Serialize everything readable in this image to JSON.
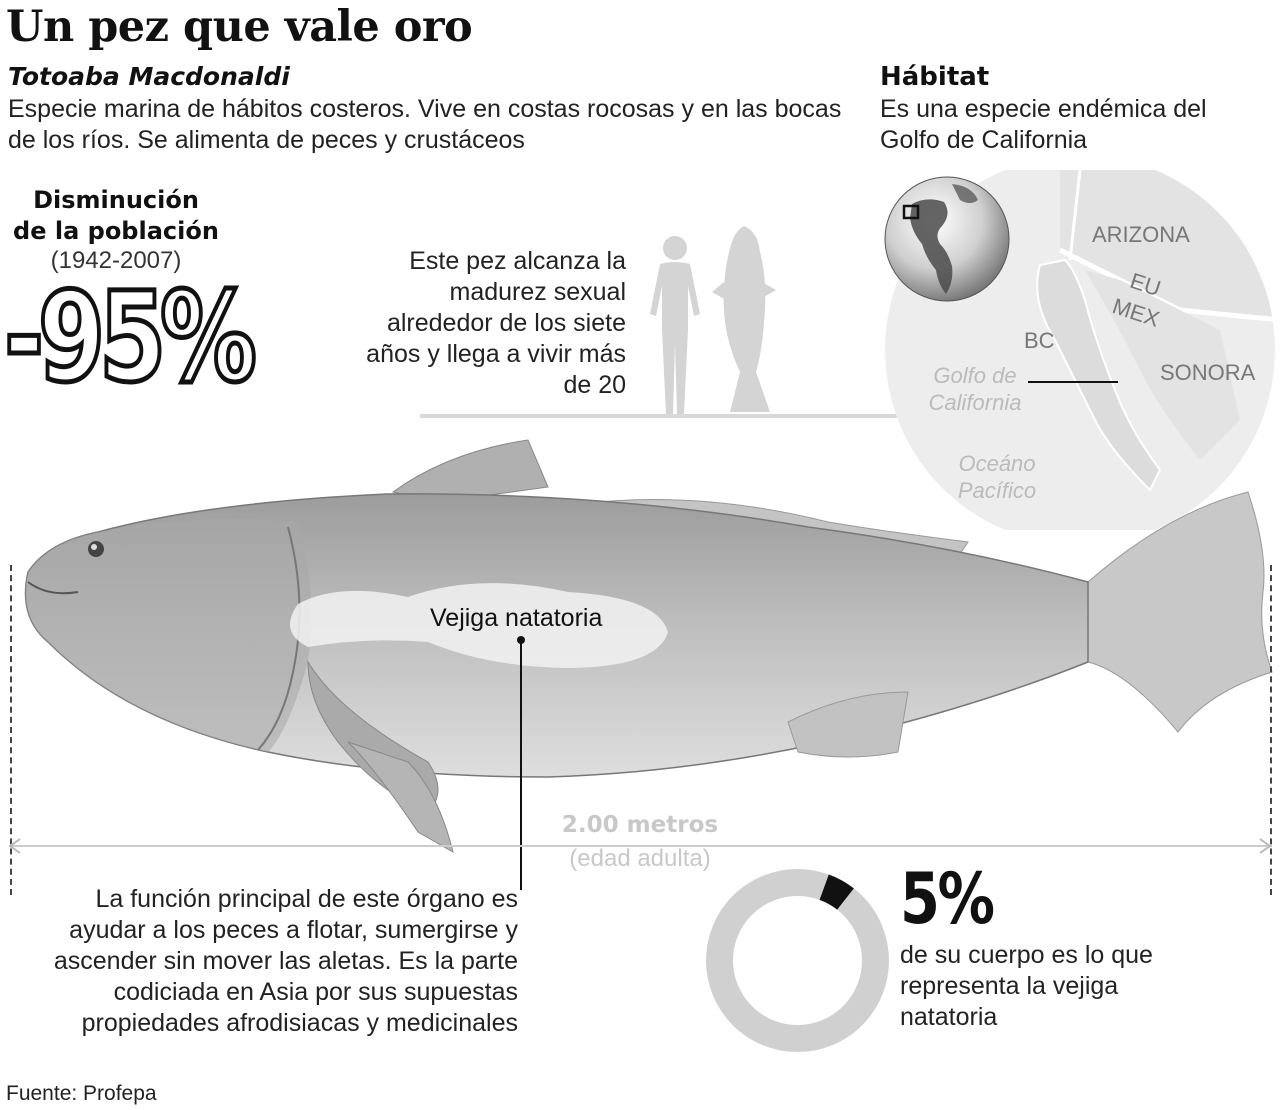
{
  "title": "Un pez que vale oro",
  "species": {
    "name": "Totoaba Macdonaldi",
    "description": "Especie marina de hábitos costeros. Vive en costas rocosas y en las bocas de los ríos. Se alimenta de peces y crustáceos"
  },
  "habitat": {
    "title": "Hábitat",
    "description": "Es una especie endémica del Golfo de California",
    "map_labels": {
      "arizona": "ARIZONA",
      "eu": "EU",
      "mex": "MEX",
      "bc": "BC",
      "sonora": "SONORA",
      "gulf_line1": "Golfo de",
      "gulf_line2": "California",
      "ocean_line1": "Oceáno",
      "ocean_line2": "Pacífico"
    }
  },
  "population": {
    "title_line1": "Disminución",
    "title_line2": "de la población",
    "years": "(1942-2007)",
    "value": "-95%"
  },
  "maturity": {
    "text": "Este pez alcanza la madurez sexual alrededor de los siete años y llega a vivir más de 20"
  },
  "fish": {
    "bladder_label": "Vejiga natatoria",
    "size_value": "2.00 metros",
    "size_note": "(edad adulta)"
  },
  "bladder_function": {
    "text": "La función principal de este órgano es ayudar a los peces a flotar, sumergirse y ascender sin mover las aletas. Es la parte codiciada en Asia por sus supuestas propiedades afrodisiacas y medicinales"
  },
  "bladder_share": {
    "value": "5%",
    "fraction": 0.05,
    "description": "de su cuerpo es lo que representa la vejiga natatoria"
  },
  "source": "Fuente: Profepa",
  "colors": {
    "ink": "#111111",
    "light_gray": "#c8c8c8",
    "map_fill": "#ededed",
    "donut_ring": "#d0d0d0"
  }
}
